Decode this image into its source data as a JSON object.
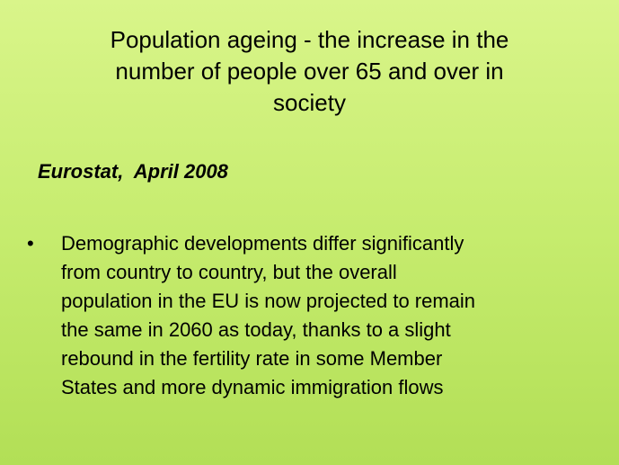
{
  "slide": {
    "title_lines": [
      "Population ageing - the increase in the",
      "number of people over 65 and over in",
      "society"
    ],
    "source": "Eurostat,  April 2008",
    "bullet": "•",
    "body_lines": [
      "Demographic developments differ significantly",
      "from country to country, but the overall",
      "population in the EU is now projected to remain",
      "the same in 2060 as today, thanks to a slight",
      "rebound in the fertility rate in some Member",
      "States and more dynamic immigration flows"
    ]
  }
}
